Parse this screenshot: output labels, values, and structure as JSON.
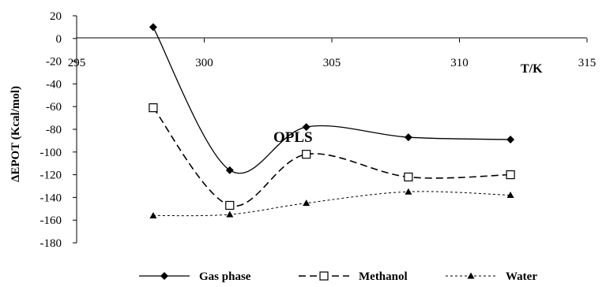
{
  "chart_data": {
    "type": "line",
    "title": "",
    "annotation": "OPLS",
    "xlabel": "T/K",
    "ylabel": "ΔEPOT (Kcal/mol)",
    "xlim": [
      295,
      315
    ],
    "ylim": [
      -180,
      20
    ],
    "x_ticks": [
      295,
      300,
      305,
      310,
      315
    ],
    "y_ticks": [
      20,
      0,
      -20,
      -40,
      -60,
      -80,
      -100,
      -120,
      -140,
      -160,
      -180
    ],
    "x": [
      298,
      301,
      304,
      308,
      312
    ],
    "series": [
      {
        "name": "Gas phase",
        "values": [
          10,
          -116,
          -78,
          -87,
          -89
        ],
        "style": "solid",
        "marker": "diamond"
      },
      {
        "name": "Methanol",
        "values": [
          -61,
          -147,
          -102,
          -122,
          -120
        ],
        "style": "dashed",
        "marker": "square"
      },
      {
        "name": "Water",
        "values": [
          -156,
          -155,
          -145,
          -135,
          -138
        ],
        "style": "dotted",
        "marker": "triangle"
      }
    ],
    "grid": false,
    "legend": "bottom"
  }
}
